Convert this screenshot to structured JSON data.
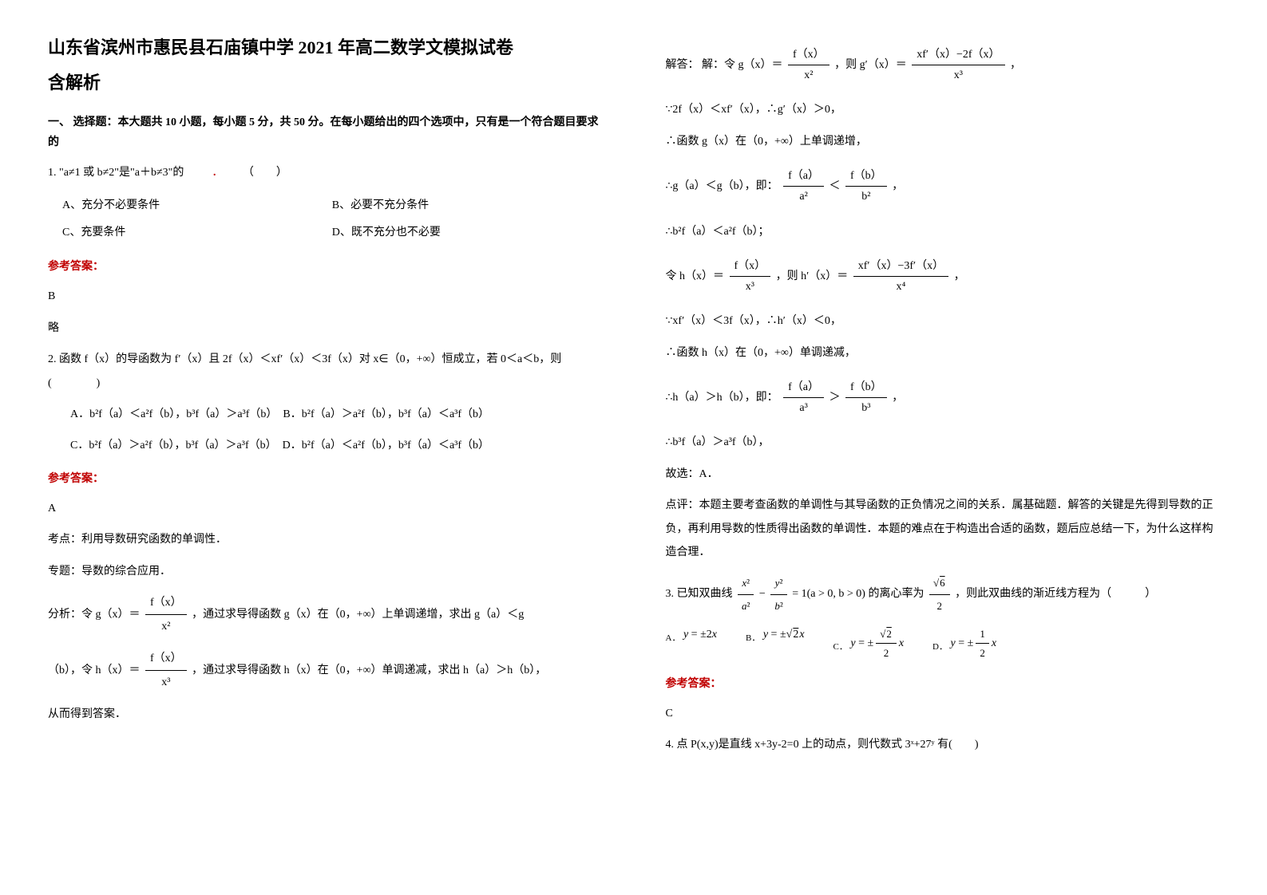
{
  "title_main": "山东省滨州市惠民县石庙镇中学 2021 年高二数学文模拟试卷",
  "title_sub": "含解析",
  "section1": "一、 选择题：本大题共 10 小题，每小题 5 分，共 50 分。在每小题给出的四个选项中，只有是一个符合题目要求的",
  "q1": {
    "stem": "1. \"a≠1 或 b≠2\"是\"a＋b≠3\"的",
    "dot": "．",
    "paren": "（　　）",
    "optA": "A、充分不必要条件",
    "optB": "B、必要不充分条件",
    "optC": "C、充要条件",
    "optD": "D、既不充分也不必要",
    "answer_label": "参考答案：",
    "answer": "B",
    "brief": "略"
  },
  "q2": {
    "stem_p1": "2. 函数 f（x）的导函数为 f′（x）且 2f（x）＜xf′（x）＜3f（x）对 x∈（0，+∞）恒成立，若 0＜a＜b，则(　　　　)",
    "optA_p1": "A．b²f（a）＜a²f（b），b³f（a）＞a³f（b）",
    "optA_p2": "B．b²f（a）＞a²f（b），b³f（a）＜a³f（b）",
    "optC_p1": "C．b²f（a）＞a²f（b），b³f（a）＞a³f（b）",
    "optC_p2": "D．b²f（a）＜a²f（b），b³f（a）＜a³f（b）",
    "answer_label": "参考答案：",
    "answer": "A",
    "kaodian_label": "考点：",
    "kaodian": "利用导数研究函数的单调性．",
    "zhuanti_label": "专题：",
    "zhuanti": "导数的综合应用．",
    "fenxi_label": "分析：",
    "fenxi_p1": "令 g（x）＝",
    "fenxi_p2": "，通过求导得函数 g（x）在（0，+∞）上单调递增，求出 g（a）＜g",
    "fenxi_p3": "（b），令 h（x）＝",
    "fenxi_p4": "，通过求导得函数 h（x）在（0，+∞）单调递减，求出 h（a）＞h（b），",
    "fenxi_p5": "从而得到答案．",
    "jieda_label": "解答：",
    "jieda_p0": "解：令 g（x）＝",
    "jieda_p1": "，则 g′（x）＝",
    "jieda_p1b": "，",
    "jieda_p2": "∵2f（x）＜xf′（x），∴g′（x）＞0，",
    "jieda_p3": "∴函数 g（x）在（0，+∞）上单调递增，",
    "jieda_p4": "∴g（a）＜g（b），即：",
    "jieda_p4b": "，",
    "jieda_p5": "∴b²f（a）＜a²f（b）；",
    "jieda_p6": "令 h（x）＝",
    "jieda_p6b": "，则 h′（x）＝",
    "jieda_p6c": "，",
    "jieda_p7": "∵xf′（x）＜3f（x），∴h′（x）＜0，",
    "jieda_p8": "∴函数 h（x）在（0，+∞）单调递减，",
    "jieda_p9": "∴h（a）＞h（b），即：",
    "jieda_p9b": "，",
    "jieda_p10": "∴b³f（a）＞a³f（b），",
    "jieda_p11": "故选：A．",
    "dianping_label": "点评：",
    "dianping_p1": "本题主要考查函数的单调性与其导函数的正负情况之间的关系．属基础题．解答的关键是先得到导数的正负，再利用导数的性质得出函数的单调性．本题的难点在于构造出合适的函数，题后应总结一下，为什么这样构造合理．",
    "frac_g_num": "f（x）",
    "frac_g_den": "x²",
    "frac_gp_num": "xf′（x）−2f（x）",
    "frac_gp_den": "x³",
    "frac_h_num": "f（x）",
    "frac_h_den": "x³",
    "frac_hp_num": "xf′（x）−3f′（x）",
    "frac_hp_den": "x⁴",
    "frac_fa_num": "f（a）",
    "frac_fa_den": "a²",
    "frac_fb_num": "f（b）",
    "frac_fb_den": "b²",
    "frac_fa3_num": "f（a）",
    "frac_fa3_den": "a³",
    "frac_fb3_num": "f（b）",
    "frac_fb3_den": "b³"
  },
  "q3": {
    "stem_p1": "3. 已知双曲线",
    "stem_mid": "的离心率为",
    "stem_p2": "，则此双曲线的渐近线方程为（　　　）",
    "eq_num": "x²",
    "eq_a2": "a²",
    "eq_y2": "y²",
    "eq_b2": "b²",
    "eq_eq1": " = 1(a > 0, b > 0)",
    "ecc_num": "√6",
    "ecc_den": "2",
    "optA_label": "A．",
    "optA": "y = ±2x",
    "optB_label": "B．",
    "optB": "y = ±√2 x",
    "optC_label": "C．",
    "optC_pre": "y = ±",
    "optC_num": "√2",
    "optC_den": "2",
    "optC_suf": "x",
    "optD_label": "D．",
    "optD_pre": "y = ±",
    "optD_num": "1",
    "optD_den": "2",
    "optD_suf": "x",
    "answer_label": "参考答案：",
    "answer": "C"
  },
  "q4": {
    "stem": "4. 点 P(x,y)是直线 x+3y-2=0 上的动点，则代数式 3ˣ+27ʸ 有(　　)"
  }
}
